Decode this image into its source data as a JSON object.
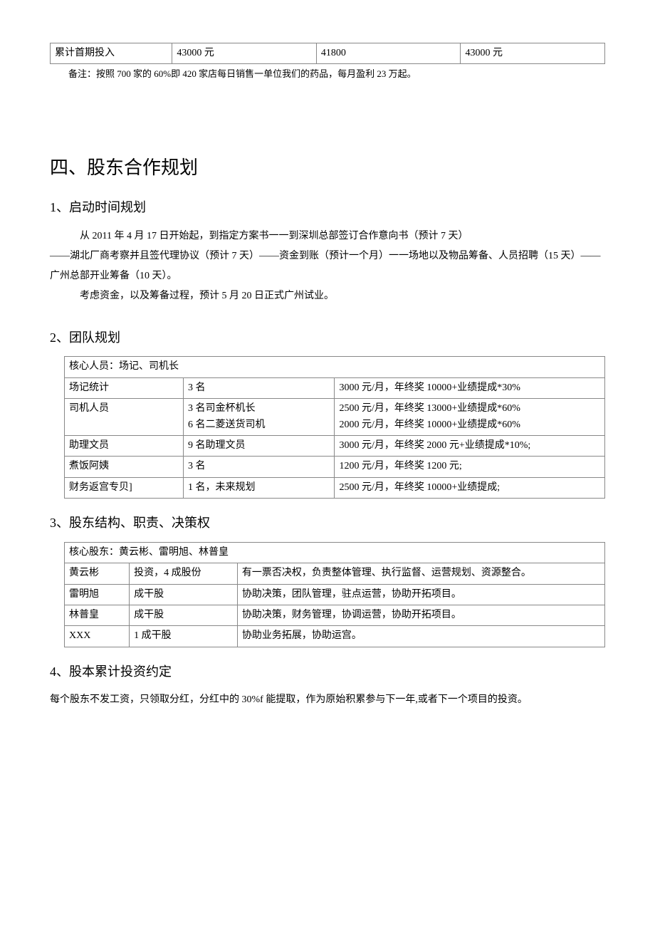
{
  "top_table": {
    "row": [
      "累计首期投入",
      "43000 元",
      "41800",
      "43000 元"
    ]
  },
  "note": "备注：按照 700 家的 60%即 420 家店每日销售一单位我们的药品，每月盈利 23 万起。",
  "section_title": "四、股东合作规划",
  "sub1": {
    "title": "1、启动时间规划",
    "p1": "从 2011 年 4 月 17 日开始起，到指定方案书一一到深圳总部签订合作意向书（预计 7 天）",
    "p2": "——湖北厂商考察并且签代理协议（预计 7 天）——资金到账（预计一个月）一一场地以及物品筹备、人员招聘（15 天）——广州总部开业筹备（10 天）。",
    "p3": "考虑资金，以及筹备过程，预计 5 月 20 日正式广州试业。"
  },
  "sub2": {
    "title": "2、团队规划",
    "header": "核心人员：场记、司机长",
    "rows": [
      [
        "场记统计",
        "3 名",
        "3000 元/月，年终奖 10000+业绩提成*30%"
      ],
      [
        "司机人员",
        "3 名司金杯机长\n6 名二菱送货司机",
        "2500 元/月，年终奖 13000+业绩提成*60%\n2000 元/月，年终奖 10000+业绩提成*60%"
      ],
      [
        "助理文员",
        "9 名助理文员",
        "3000 元/月，年终奖 2000 元+业绩提成*10%;"
      ],
      [
        "煮饭阿姨",
        "3 名",
        "1200 元/月，年终奖 1200 元;"
      ],
      [
        "财务返宫专贝]",
        "1 名，未来规划",
        "2500 元/月，年终奖 10000+业绩提成;"
      ]
    ]
  },
  "sub3": {
    "title": "3、股东结构、职责、决策权",
    "header": "核心股东：黄云彬、雷明旭、林普皇",
    "rows": [
      [
        "黄云彬",
        "投资，4 成股份",
        "有一票否决权，负责整体管理、执行监督、运营规划、资源整合。"
      ],
      [
        "雷明旭",
        "成干股",
        "协助决策，团队管理，驻点运营，协助开拓项目。"
      ],
      [
        "林普皇",
        "成干股",
        "协助决策，财务管理，协调运营，协助开拓项目。"
      ],
      [
        "XXX",
        "1 成干股",
        "协助业务拓展，协助运宫。"
      ]
    ]
  },
  "sub4": {
    "title": "4、股本累计投资约定",
    "text": "每个股东不发工资，只领取分红，分红中的 30%f 能提取，作为原始积累参与下一年,或者下一个项目的投资。"
  }
}
